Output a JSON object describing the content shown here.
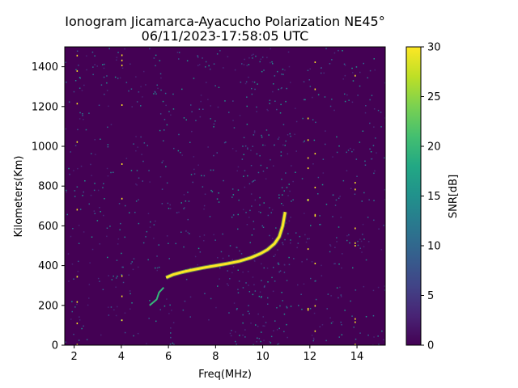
{
  "chart_data": {
    "type": "heatmap",
    "title_line1": "Ionogram Jicamarca-Ayacucho Polarization NE45°",
    "title_line2": "06/11/2023-17:58:05 UTC",
    "xlabel": "Freq(MHz)",
    "ylabel": "Kilometers(Km)",
    "xlim": [
      1.6,
      15.2
    ],
    "ylim": [
      0,
      1500
    ],
    "x_ticks": [
      2,
      4,
      6,
      8,
      10,
      12,
      14
    ],
    "y_ticks": [
      0,
      200,
      400,
      600,
      800,
      1000,
      1200,
      1400
    ],
    "colorbar": {
      "label": "SNR[dB]",
      "range": [
        0,
        30
      ],
      "ticks": [
        0,
        5,
        10,
        15,
        20,
        25,
        30
      ],
      "colormap": "viridis"
    },
    "background_color": "#440154",
    "trace": {
      "description_values": "strong echo trace (SNR ~30 dB)",
      "points": [
        {
          "x": 5.9,
          "y": 340
        },
        {
          "x": 6.2,
          "y": 355
        },
        {
          "x": 6.6,
          "y": 368
        },
        {
          "x": 7.0,
          "y": 378
        },
        {
          "x": 7.5,
          "y": 390
        },
        {
          "x": 8.0,
          "y": 400
        },
        {
          "x": 8.5,
          "y": 410
        },
        {
          "x": 9.0,
          "y": 422
        },
        {
          "x": 9.5,
          "y": 440
        },
        {
          "x": 9.9,
          "y": 460
        },
        {
          "x": 10.2,
          "y": 480
        },
        {
          "x": 10.5,
          "y": 510
        },
        {
          "x": 10.7,
          "y": 545
        },
        {
          "x": 10.85,
          "y": 600
        },
        {
          "x": 10.95,
          "y": 670
        }
      ]
    },
    "weak_trace": {
      "points": [
        {
          "x": 5.2,
          "y": 200
        },
        {
          "x": 5.5,
          "y": 230
        },
        {
          "x": 5.6,
          "y": 265
        },
        {
          "x": 5.8,
          "y": 290
        }
      ]
    }
  }
}
